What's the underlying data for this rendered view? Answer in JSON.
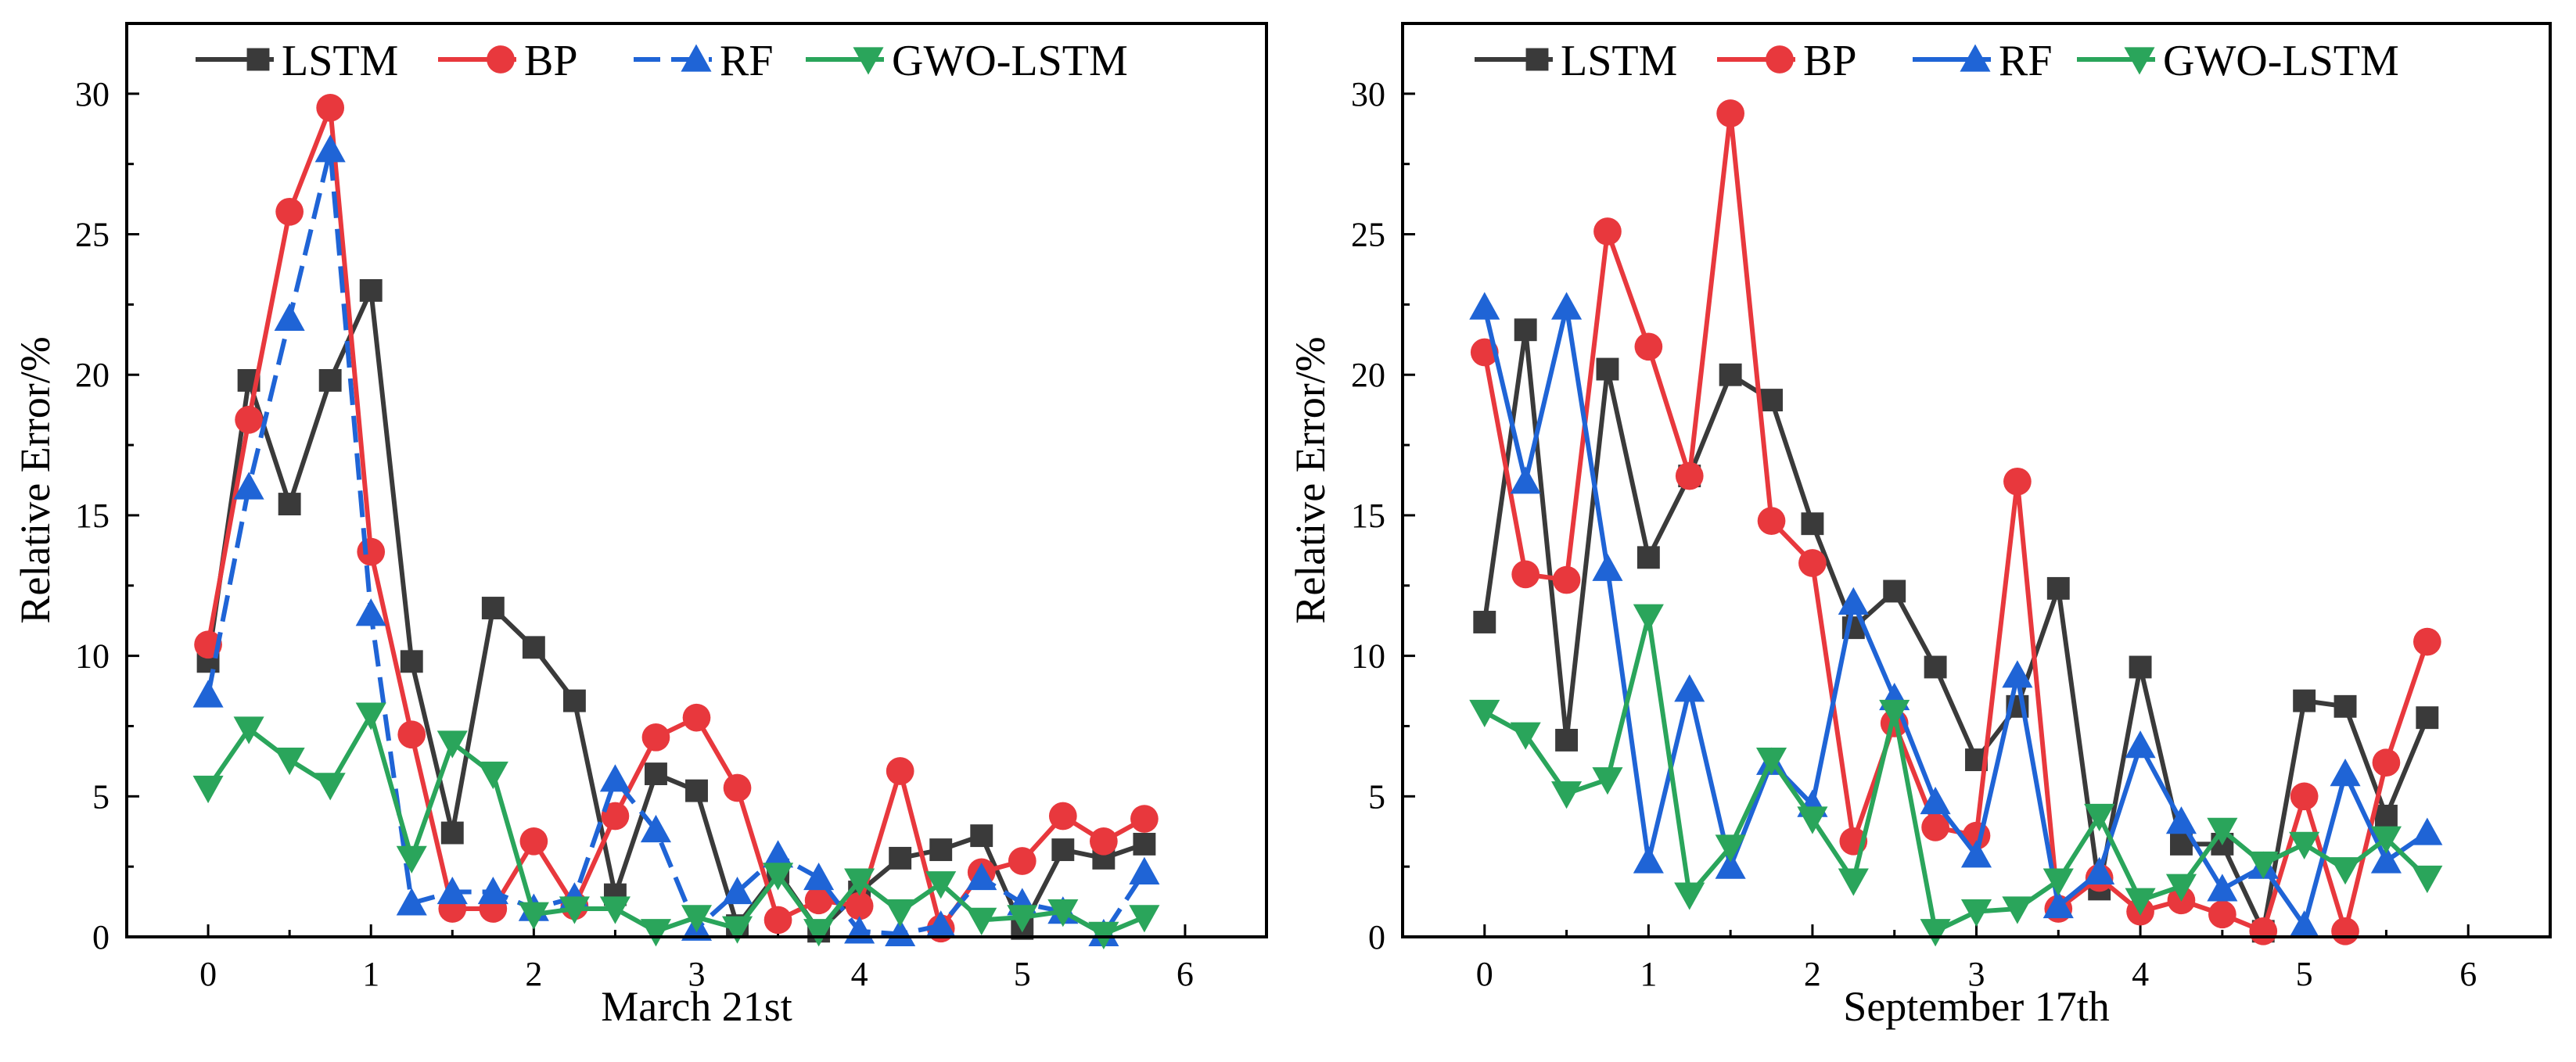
{
  "chart_data": [
    {
      "type": "line",
      "title": "",
      "xlabel": "March 21st",
      "ylabel": "Relative Error/%",
      "xlim": [
        -0.5,
        6.5
      ],
      "ylim": [
        0,
        32.5
      ],
      "xticks": [
        0,
        1,
        2,
        3,
        4,
        5,
        6
      ],
      "yticks": [
        0,
        5,
        10,
        15,
        20,
        25,
        30
      ],
      "x": [
        0,
        0.25,
        0.5,
        0.75,
        1,
        1.25,
        1.5,
        1.75,
        2,
        2.25,
        2.5,
        2.75,
        3,
        3.25,
        3.5,
        3.75,
        4,
        4.25,
        4.5,
        4.75,
        5,
        5.25,
        5.5,
        5.75
      ],
      "legend": "top",
      "series": [
        {
          "name": "LSTM",
          "color": "#3a3a3a",
          "marker": "square",
          "dash": "solid",
          "values": [
            9.8,
            19.8,
            15.4,
            19.8,
            23.0,
            9.8,
            3.7,
            11.7,
            10.3,
            8.4,
            1.5,
            5.8,
            5.2,
            0.4,
            2.3,
            0.2,
            1.6,
            2.8,
            3.1,
            3.6,
            0.3,
            3.1,
            2.8,
            3.3
          ]
        },
        {
          "name": "BP",
          "color": "#e8383d",
          "marker": "circle",
          "dash": "solid",
          "values": [
            10.4,
            18.4,
            25.8,
            29.5,
            13.7,
            7.2,
            1.0,
            1.0,
            3.4,
            1.1,
            4.3,
            7.1,
            7.8,
            5.3,
            0.6,
            1.3,
            1.1,
            5.9,
            0.3,
            2.3,
            2.7,
            4.3,
            3.4,
            4.2
          ]
        },
        {
          "name": "RF",
          "color": "#1f64d6",
          "marker": "triangle-up",
          "dash": "dashed",
          "values": [
            8.6,
            16.0,
            22.0,
            28.0,
            11.5,
            1.2,
            1.6,
            1.6,
            1.0,
            1.4,
            5.6,
            3.8,
            0.3,
            1.6,
            2.9,
            2.1,
            0.2,
            0.1,
            0.4,
            2.1,
            1.2,
            0.9,
            0.1,
            2.3
          ]
        },
        {
          "name": "GWO-LSTM",
          "color": "#2aa55b",
          "marker": "triangle-down",
          "dash": "solid",
          "values": [
            5.3,
            7.4,
            6.3,
            5.4,
            7.9,
            2.8,
            6.9,
            5.8,
            0.8,
            1.0,
            1.0,
            0.2,
            0.7,
            0.3,
            2.2,
            0.2,
            2.0,
            0.9,
            1.9,
            0.6,
            0.7,
            0.9,
            0.1,
            0.7
          ]
        }
      ]
    },
    {
      "type": "line",
      "title": "",
      "xlabel": "September 17th",
      "ylabel": "Relative Error/%",
      "xlim": [
        -0.5,
        6.5
      ],
      "ylim": [
        0,
        32.5
      ],
      "xticks": [
        0,
        1,
        2,
        3,
        4,
        5,
        6
      ],
      "yticks": [
        0,
        5,
        10,
        15,
        20,
        25,
        30
      ],
      "x": [
        0,
        0.25,
        0.5,
        0.75,
        1,
        1.25,
        1.5,
        1.75,
        2,
        2.25,
        2.5,
        2.75,
        3,
        3.25,
        3.5,
        3.75,
        4,
        4.25,
        4.5,
        4.75,
        5,
        5.25,
        5.5,
        5.75
      ],
      "legend": "top",
      "series": [
        {
          "name": "LSTM",
          "color": "#3a3a3a",
          "marker": "square",
          "dash": "solid",
          "values": [
            11.2,
            21.6,
            7.0,
            20.2,
            13.5,
            16.4,
            20.0,
            19.1,
            14.7,
            11.0,
            12.3,
            9.6,
            6.3,
            8.2,
            12.4,
            1.7,
            9.6,
            3.3,
            3.3,
            0.2,
            8.4,
            8.2,
            4.3,
            7.8
          ]
        },
        {
          "name": "BP",
          "color": "#e8383d",
          "marker": "circle",
          "dash": "solid",
          "values": [
            20.8,
            12.9,
            12.7,
            25.1,
            21.0,
            16.4,
            29.3,
            14.8,
            13.3,
            3.4,
            7.6,
            3.9,
            3.6,
            16.2,
            1.0,
            2.1,
            0.9,
            1.3,
            0.8,
            0.2,
            5.0,
            0.2,
            6.2,
            10.5
          ]
        },
        {
          "name": "RF",
          "color": "#1f64d6",
          "marker": "triangle-up",
          "dash": "solid",
          "values": [
            22.4,
            16.2,
            22.4,
            13.1,
            2.7,
            8.8,
            2.5,
            6.2,
            4.7,
            11.9,
            8.5,
            4.8,
            2.9,
            9.3,
            1.1,
            2.3,
            6.8,
            4.1,
            1.7,
            2.5,
            0.4,
            5.8,
            2.7,
            3.7
          ]
        },
        {
          "name": "GWO-LSTM",
          "color": "#2aa55b",
          "marker": "triangle-down",
          "dash": "solid",
          "values": [
            8.0,
            7.2,
            5.1,
            5.6,
            11.4,
            1.5,
            3.2,
            6.3,
            4.2,
            2.0,
            8.0,
            0.2,
            0.9,
            1.0,
            2.0,
            4.3,
            1.3,
            1.8,
            3.8,
            2.6,
            3.3,
            2.4,
            3.5,
            2.1
          ]
        }
      ]
    }
  ]
}
